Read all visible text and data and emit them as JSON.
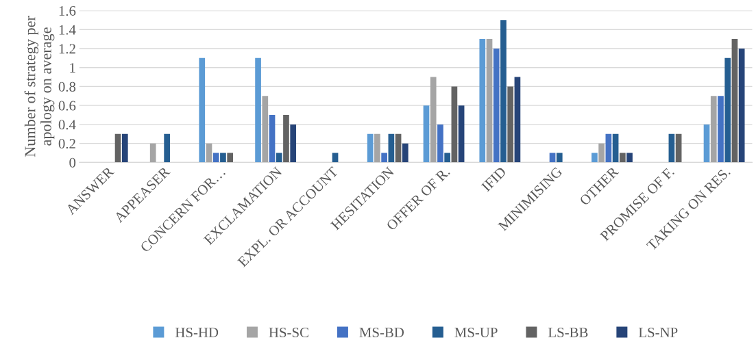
{
  "chart_data": {
    "type": "bar",
    "ylabel": "Number of strategy per apology on average",
    "categories": [
      "ANSWER",
      "APPEASER",
      "CONCERN FOR…",
      "EXCLAMATION",
      "EXPL. OR ACCOUNT",
      "HESITATION",
      "OFFER OF R.",
      "IFID",
      "MINIMISING",
      "OTHER",
      "PROMISE OF F.",
      "TAKING ON RES."
    ],
    "series": [
      {
        "name": "HS-HD",
        "color": "#5b9bd5",
        "values": [
          0,
          0,
          1.1,
          1.1,
          0,
          0.3,
          0.6,
          1.3,
          0,
          0.1,
          0,
          0.4
        ]
      },
      {
        "name": "HS-SC",
        "color": "#a5a5a5",
        "values": [
          0,
          0.2,
          0.2,
          0.7,
          0,
          0.3,
          0.9,
          1.3,
          0,
          0.2,
          0,
          0.7
        ]
      },
      {
        "name": "MS-BD",
        "color": "#4472c4",
        "values": [
          0,
          0,
          0.1,
          0.5,
          0,
          0.1,
          0.4,
          1.2,
          0.1,
          0.3,
          0,
          0.7
        ]
      },
      {
        "name": "MS-UP",
        "color": "#255e91",
        "values": [
          0,
          0.3,
          0.1,
          0.1,
          0.1,
          0.3,
          0.1,
          1.5,
          0.1,
          0.3,
          0.3,
          1.1
        ]
      },
      {
        "name": "LS-BB",
        "color": "#636363",
        "values": [
          0.3,
          0,
          0.1,
          0.5,
          0,
          0.3,
          0.8,
          0.8,
          0,
          0.1,
          0.3,
          1.3
        ]
      },
      {
        "name": "LS-NP",
        "color": "#264478",
        "values": [
          0.3,
          0,
          0,
          0.4,
          0,
          0.2,
          0.6,
          0.9,
          0,
          0.1,
          0,
          1.2
        ]
      }
    ],
    "ylim": [
      0,
      1.6
    ],
    "yticks": [
      0,
      0.2,
      0.4,
      0.6,
      0.8,
      1,
      1.2,
      1.4,
      1.6
    ],
    "grid": "y",
    "legend": "bottom"
  }
}
